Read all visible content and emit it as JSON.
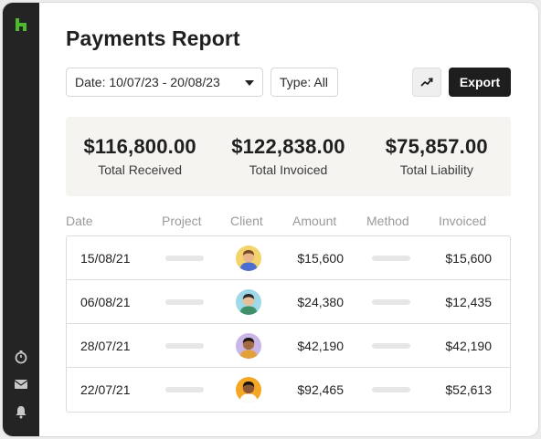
{
  "app": {
    "sidebar": {
      "logo_icon": "houzz-logo-icon",
      "icons": [
        "timer-icon",
        "mail-icon",
        "bell-icon"
      ],
      "accent": "#4dbb2b"
    }
  },
  "page": {
    "title": "Payments Report"
  },
  "toolbar": {
    "date_filter": "Date: 10/07/23 - 20/08/23",
    "type_filter": "Type: All",
    "trend_icon": "trend-chart-icon",
    "export_label": "Export"
  },
  "summary": [
    {
      "value": "$116,800.00",
      "label": "Total Received"
    },
    {
      "value": "$122,838.00",
      "label": "Total Invoiced"
    },
    {
      "value": "$75,857.00",
      "label": "Total Liability"
    }
  ],
  "table": {
    "columns": [
      "Date",
      "Project",
      "Client",
      "Amount",
      "Method",
      "Invoiced"
    ],
    "rows": [
      {
        "date": "15/08/21",
        "amount": "$15,600",
        "invoiced": "$15,600",
        "avatar_bg": "#f3d36b",
        "skin": "#e9b48a",
        "hair": "#7a4b2a",
        "shirt": "#4a6fd1"
      },
      {
        "date": "06/08/21",
        "amount": "$24,380",
        "invoiced": "$12,435",
        "avatar_bg": "#9fd8e6",
        "skin": "#e7c09b",
        "hair": "#2a2a2a",
        "shirt": "#3f8f6a"
      },
      {
        "date": "28/07/21",
        "amount": "$42,190",
        "invoiced": "$42,190",
        "avatar_bg": "#c9b6e8",
        "skin": "#a36a45",
        "hair": "#1f140e",
        "shirt": "#e3a13a"
      },
      {
        "date": "22/07/21",
        "amount": "$92,465",
        "invoiced": "$52,613",
        "avatar_bg": "#f5a623",
        "skin": "#8a5636",
        "hair": "#1b120c",
        "shirt": "#ffffff"
      }
    ]
  }
}
